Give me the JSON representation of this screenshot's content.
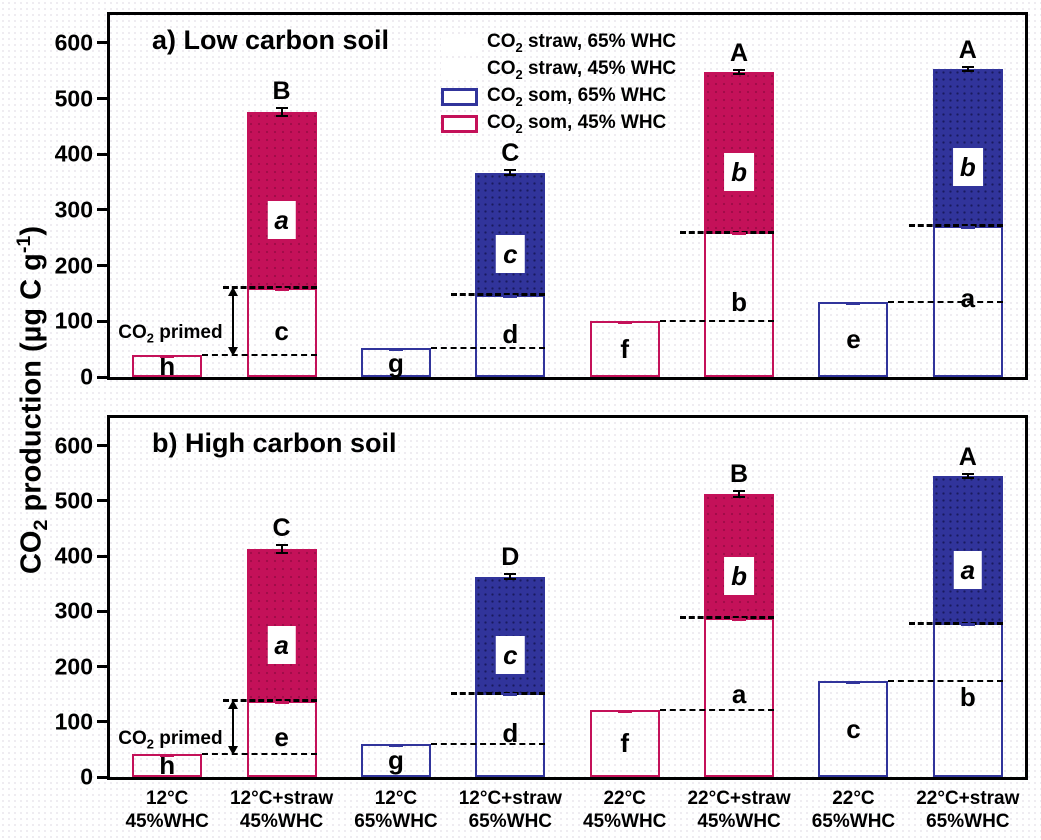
{
  "y_axis": {
    "title_pre": "CO",
    "title_sub": "2",
    "title_mid": " production (µg C g",
    "title_sup": "-1",
    "title_post": ")"
  },
  "colors": {
    "straw_65": "#31349B",
    "straw_45": "#C41159",
    "axis": "#000000",
    "dashed_line": "#000000"
  },
  "legend": {
    "items": [
      {
        "style": "filled-65",
        "pre": "CO",
        "sub": "2",
        "rest": " straw, 65% WHC"
      },
      {
        "style": "filled-45",
        "pre": "CO",
        "sub": "2",
        "rest": " straw, 45% WHC"
      },
      {
        "style": "outline-65",
        "pre": "CO",
        "sub": "2",
        "rest": " som, 65% WHC"
      },
      {
        "style": "outline-45",
        "pre": "CO",
        "sub": "2",
        "rest": " som, 45% WHC"
      }
    ]
  },
  "annotation": {
    "pre": "CO",
    "sub": "2",
    "rest": " primed"
  },
  "chart_data": [
    {
      "type": "bar",
      "panel": "a",
      "title": "a) Low carbon soil",
      "ylabel": "CO2 production (µg C g-1)",
      "ylim": [
        0,
        650
      ],
      "yticks": [
        0,
        100,
        200,
        300,
        400,
        500,
        600
      ],
      "grid": false,
      "legend_position": "top-center-inside",
      "categories": [
        [
          "12°C",
          "45%WHC"
        ],
        [
          "12°C+straw",
          "45%WHC"
        ],
        [
          "12°C",
          "65%WHC"
        ],
        [
          "12°C+straw",
          "65%WHC"
        ],
        [
          "22°C",
          "45%WHC"
        ],
        [
          "22°C+straw",
          "45%WHC"
        ],
        [
          "22°C",
          "65%WHC"
        ],
        [
          "22°C+straw",
          "65%WHC"
        ]
      ],
      "bars": [
        {
          "whc": 45,
          "som": 40,
          "som_label": "h"
        },
        {
          "whc": 45,
          "som": 160,
          "total": 475,
          "err": 9,
          "som_label": "c",
          "straw_label": "a",
          "sig": "B"
        },
        {
          "whc": 65,
          "som": 52,
          "som_label": "g"
        },
        {
          "whc": 65,
          "som": 148,
          "total": 367,
          "err": 6,
          "som_label": "d",
          "straw_label": "c",
          "sig": "C"
        },
        {
          "whc": 45,
          "som": 100,
          "som_label": "f"
        },
        {
          "whc": 45,
          "som": 260,
          "total": 548,
          "err": 5,
          "som_label": "b",
          "straw_label": "b",
          "sig": "A"
        },
        {
          "whc": 65,
          "som": 135,
          "som_label": "e"
        },
        {
          "whc": 65,
          "som": 272,
          "total": 553,
          "err": 6,
          "som_label": "a",
          "straw_label": "b",
          "sig": "A"
        }
      ],
      "primed_span": [
        40,
        160
      ]
    },
    {
      "type": "bar",
      "panel": "b",
      "title": "b) High carbon soil",
      "ylabel": "CO2 production (µg C g-1)",
      "ylim": [
        0,
        650
      ],
      "yticks": [
        0,
        100,
        200,
        300,
        400,
        500,
        600
      ],
      "grid": false,
      "categories": [
        [
          "12°C",
          "45%WHC"
        ],
        [
          "12°C+straw",
          "45%WHC"
        ],
        [
          "12°C",
          "65%WHC"
        ],
        [
          "12°C+straw",
          "65%WHC"
        ],
        [
          "22°C",
          "45%WHC"
        ],
        [
          "22°C+straw",
          "45%WHC"
        ],
        [
          "22°C",
          "65%WHC"
        ],
        [
          "22°C+straw",
          "65%WHC"
        ]
      ],
      "bars": [
        {
          "whc": 45,
          "som": 42,
          "som_label": "h"
        },
        {
          "whc": 45,
          "som": 138,
          "total": 413,
          "err": 9,
          "som_label": "e",
          "straw_label": "a",
          "sig": "C"
        },
        {
          "whc": 65,
          "som": 60,
          "som_label": "g"
        },
        {
          "whc": 65,
          "som": 152,
          "total": 363,
          "err": 7,
          "som_label": "d",
          "straw_label": "c",
          "sig": "D"
        },
        {
          "whc": 45,
          "som": 122,
          "som_label": "f"
        },
        {
          "whc": 45,
          "som": 288,
          "total": 512,
          "err": 7,
          "som_label": "a",
          "straw_label": "b",
          "sig": "B"
        },
        {
          "whc": 65,
          "som": 173,
          "som_label": "c"
        },
        {
          "whc": 65,
          "som": 278,
          "total": 545,
          "err": 6,
          "som_label": "b",
          "straw_label": "a",
          "sig": "A"
        }
      ],
      "primed_span": [
        42,
        138
      ]
    }
  ]
}
